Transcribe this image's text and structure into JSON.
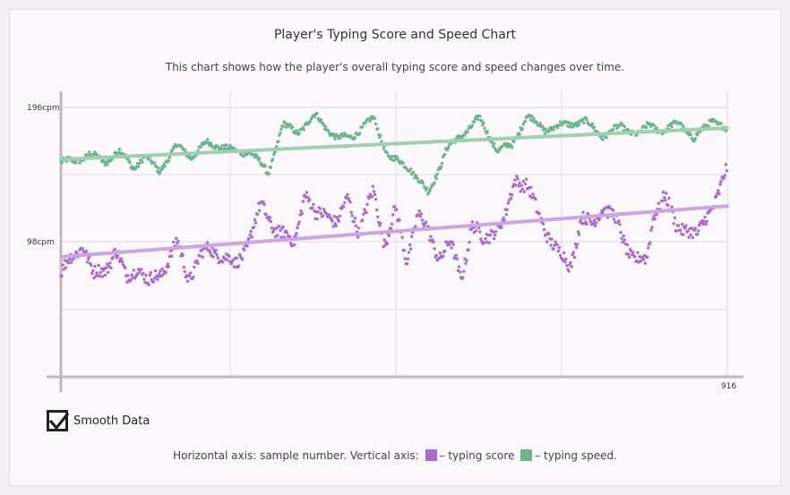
{
  "title": "Player's Typing Score and Speed Chart",
  "subtitle": "This chart shows how the player's overall typing score and speed changes over time.",
  "checkbox": {
    "label": "Smooth Data",
    "checked": true
  },
  "legend": {
    "prefix": "Horizontal axis: sample number. Vertical axis:",
    "score_label": "– typing score",
    "speed_label": "– typing speed.",
    "suffix": ""
  },
  "colors": {
    "score": "#a86bd1",
    "speed": "#6db58a",
    "score_trend": "#c9a6e4",
    "speed_trend": "#9fd0b0"
  },
  "chart_data": {
    "type": "scatter",
    "x_max_label": "916",
    "x_range": [
      0,
      916
    ],
    "y_range": [
      0,
      196
    ],
    "y_ticks": [
      {
        "value": 98,
        "label": "98cpm"
      },
      {
        "value": 196,
        "label": "196cpm"
      }
    ],
    "grid": true,
    "series": [
      {
        "name": "typing speed",
        "color": "#6db58a",
        "trend": [
          [
            0,
            158
          ],
          [
            916,
            181
          ]
        ],
        "keypoints": [
          [
            0,
            156
          ],
          [
            20,
            157
          ],
          [
            40,
            162
          ],
          [
            60,
            156
          ],
          [
            80,
            164
          ],
          [
            100,
            152
          ],
          [
            115,
            160
          ],
          [
            135,
            150
          ],
          [
            160,
            168
          ],
          [
            180,
            160
          ],
          [
            200,
            170
          ],
          [
            225,
            167
          ],
          [
            240,
            163
          ],
          [
            260,
            164
          ],
          [
            285,
            148
          ],
          [
            305,
            183
          ],
          [
            325,
            178
          ],
          [
            350,
            190
          ],
          [
            380,
            173
          ],
          [
            400,
            175
          ],
          [
            430,
            188
          ],
          [
            450,
            160
          ],
          [
            480,
            152
          ],
          [
            505,
            133
          ],
          [
            530,
            165
          ],
          [
            555,
            178
          ],
          [
            575,
            188
          ],
          [
            600,
            165
          ],
          [
            620,
            168
          ],
          [
            640,
            190
          ],
          [
            665,
            180
          ],
          [
            690,
            183
          ],
          [
            720,
            186
          ],
          [
            745,
            175
          ],
          [
            770,
            182
          ],
          [
            795,
            176
          ],
          [
            810,
            184
          ],
          [
            830,
            178
          ],
          [
            850,
            186
          ],
          [
            870,
            172
          ],
          [
            895,
            188
          ],
          [
            916,
            178
          ]
        ]
      },
      {
        "name": "typing score",
        "color": "#a86bd1",
        "trend": [
          [
            0,
            87
          ],
          [
            916,
            124
          ]
        ],
        "keypoints": [
          [
            0,
            75
          ],
          [
            15,
            85
          ],
          [
            30,
            98
          ],
          [
            45,
            72
          ],
          [
            60,
            78
          ],
          [
            75,
            92
          ],
          [
            90,
            70
          ],
          [
            105,
            82
          ],
          [
            120,
            66
          ],
          [
            140,
            78
          ],
          [
            160,
            96
          ],
          [
            175,
            72
          ],
          [
            190,
            86
          ],
          [
            205,
            92
          ],
          [
            220,
            90
          ],
          [
            240,
            79
          ],
          [
            255,
            96
          ],
          [
            275,
            123
          ],
          [
            290,
            112
          ],
          [
            305,
            103
          ],
          [
            320,
            96
          ],
          [
            335,
            135
          ],
          [
            350,
            115
          ],
          [
            365,
            122
          ],
          [
            380,
            110
          ],
          [
            395,
            130
          ],
          [
            410,
            106
          ],
          [
            430,
            134
          ],
          [
            445,
            98
          ],
          [
            460,
            120
          ],
          [
            475,
            85
          ],
          [
            490,
            118
          ],
          [
            505,
            104
          ],
          [
            520,
            88
          ],
          [
            535,
            96
          ],
          [
            550,
            72
          ],
          [
            565,
            110
          ],
          [
            580,
            98
          ],
          [
            595,
            108
          ],
          [
            610,
            112
          ],
          [
            625,
            145
          ],
          [
            640,
            140
          ],
          [
            655,
            118
          ],
          [
            670,
            104
          ],
          [
            685,
            88
          ],
          [
            700,
            80
          ],
          [
            715,
            116
          ],
          [
            730,
            108
          ],
          [
            745,
            126
          ],
          [
            760,
            115
          ],
          [
            775,
            97
          ],
          [
            790,
            86
          ],
          [
            805,
            82
          ],
          [
            815,
            120
          ],
          [
            830,
            132
          ],
          [
            845,
            108
          ],
          [
            860,
            110
          ],
          [
            875,
            100
          ],
          [
            890,
            120
          ],
          [
            905,
            135
          ],
          [
            916,
            150
          ]
        ]
      }
    ]
  }
}
